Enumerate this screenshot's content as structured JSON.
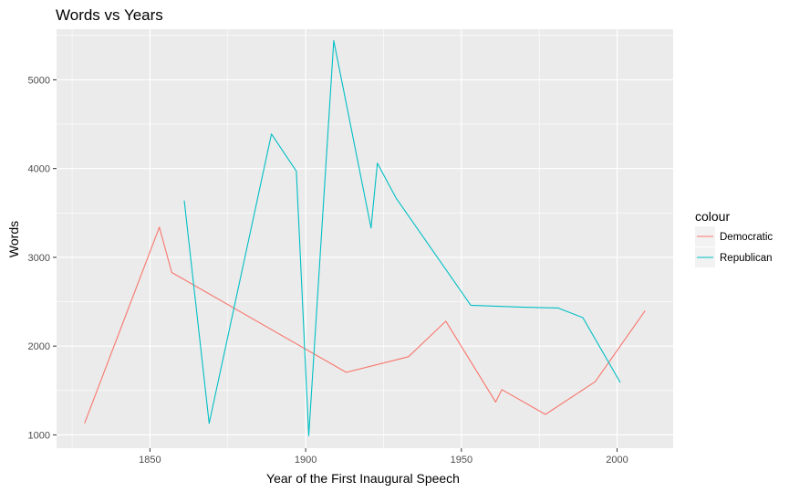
{
  "chart_data": {
    "type": "line",
    "title": "Words vs Years",
    "xlabel": "Year of the First Inaugural Speech",
    "ylabel": "Words",
    "xlim": [
      1820,
      2018
    ],
    "ylim": [
      850,
      5570
    ],
    "x_ticks": [
      1850,
      1900,
      1950,
      2000
    ],
    "y_ticks": [
      1000,
      2000,
      3000,
      4000,
      5000
    ],
    "x_minor": [
      1825,
      1875,
      1925,
      1975,
      2025
    ],
    "y_minor": [
      1500,
      2500,
      3500,
      4500,
      5500
    ],
    "grid": true,
    "legend": {
      "title": "colour",
      "position": "right"
    },
    "series": [
      {
        "name": "Democratic",
        "color": "#F8766D",
        "points": [
          [
            1829,
            1130
          ],
          [
            1853,
            3340
          ],
          [
            1857,
            2830
          ],
          [
            1913,
            1705
          ],
          [
            1933,
            1880
          ],
          [
            1945,
            2280
          ],
          [
            1961,
            1370
          ],
          [
            1963,
            1510
          ],
          [
            1977,
            1230
          ],
          [
            1993,
            1600
          ],
          [
            2009,
            2400
          ]
        ]
      },
      {
        "name": "Republican",
        "color": "#00BFC4",
        "points": [
          [
            1861,
            3640
          ],
          [
            1869,
            1130
          ],
          [
            1889,
            4390
          ],
          [
            1897,
            3970
          ],
          [
            1901,
            990
          ],
          [
            1909,
            5440
          ],
          [
            1921,
            3330
          ],
          [
            1923,
            4060
          ],
          [
            1929,
            3670
          ],
          [
            1953,
            2460
          ],
          [
            1969,
            2440
          ],
          [
            1981,
            2430
          ],
          [
            1989,
            2320
          ],
          [
            2001,
            1590
          ]
        ]
      }
    ]
  }
}
